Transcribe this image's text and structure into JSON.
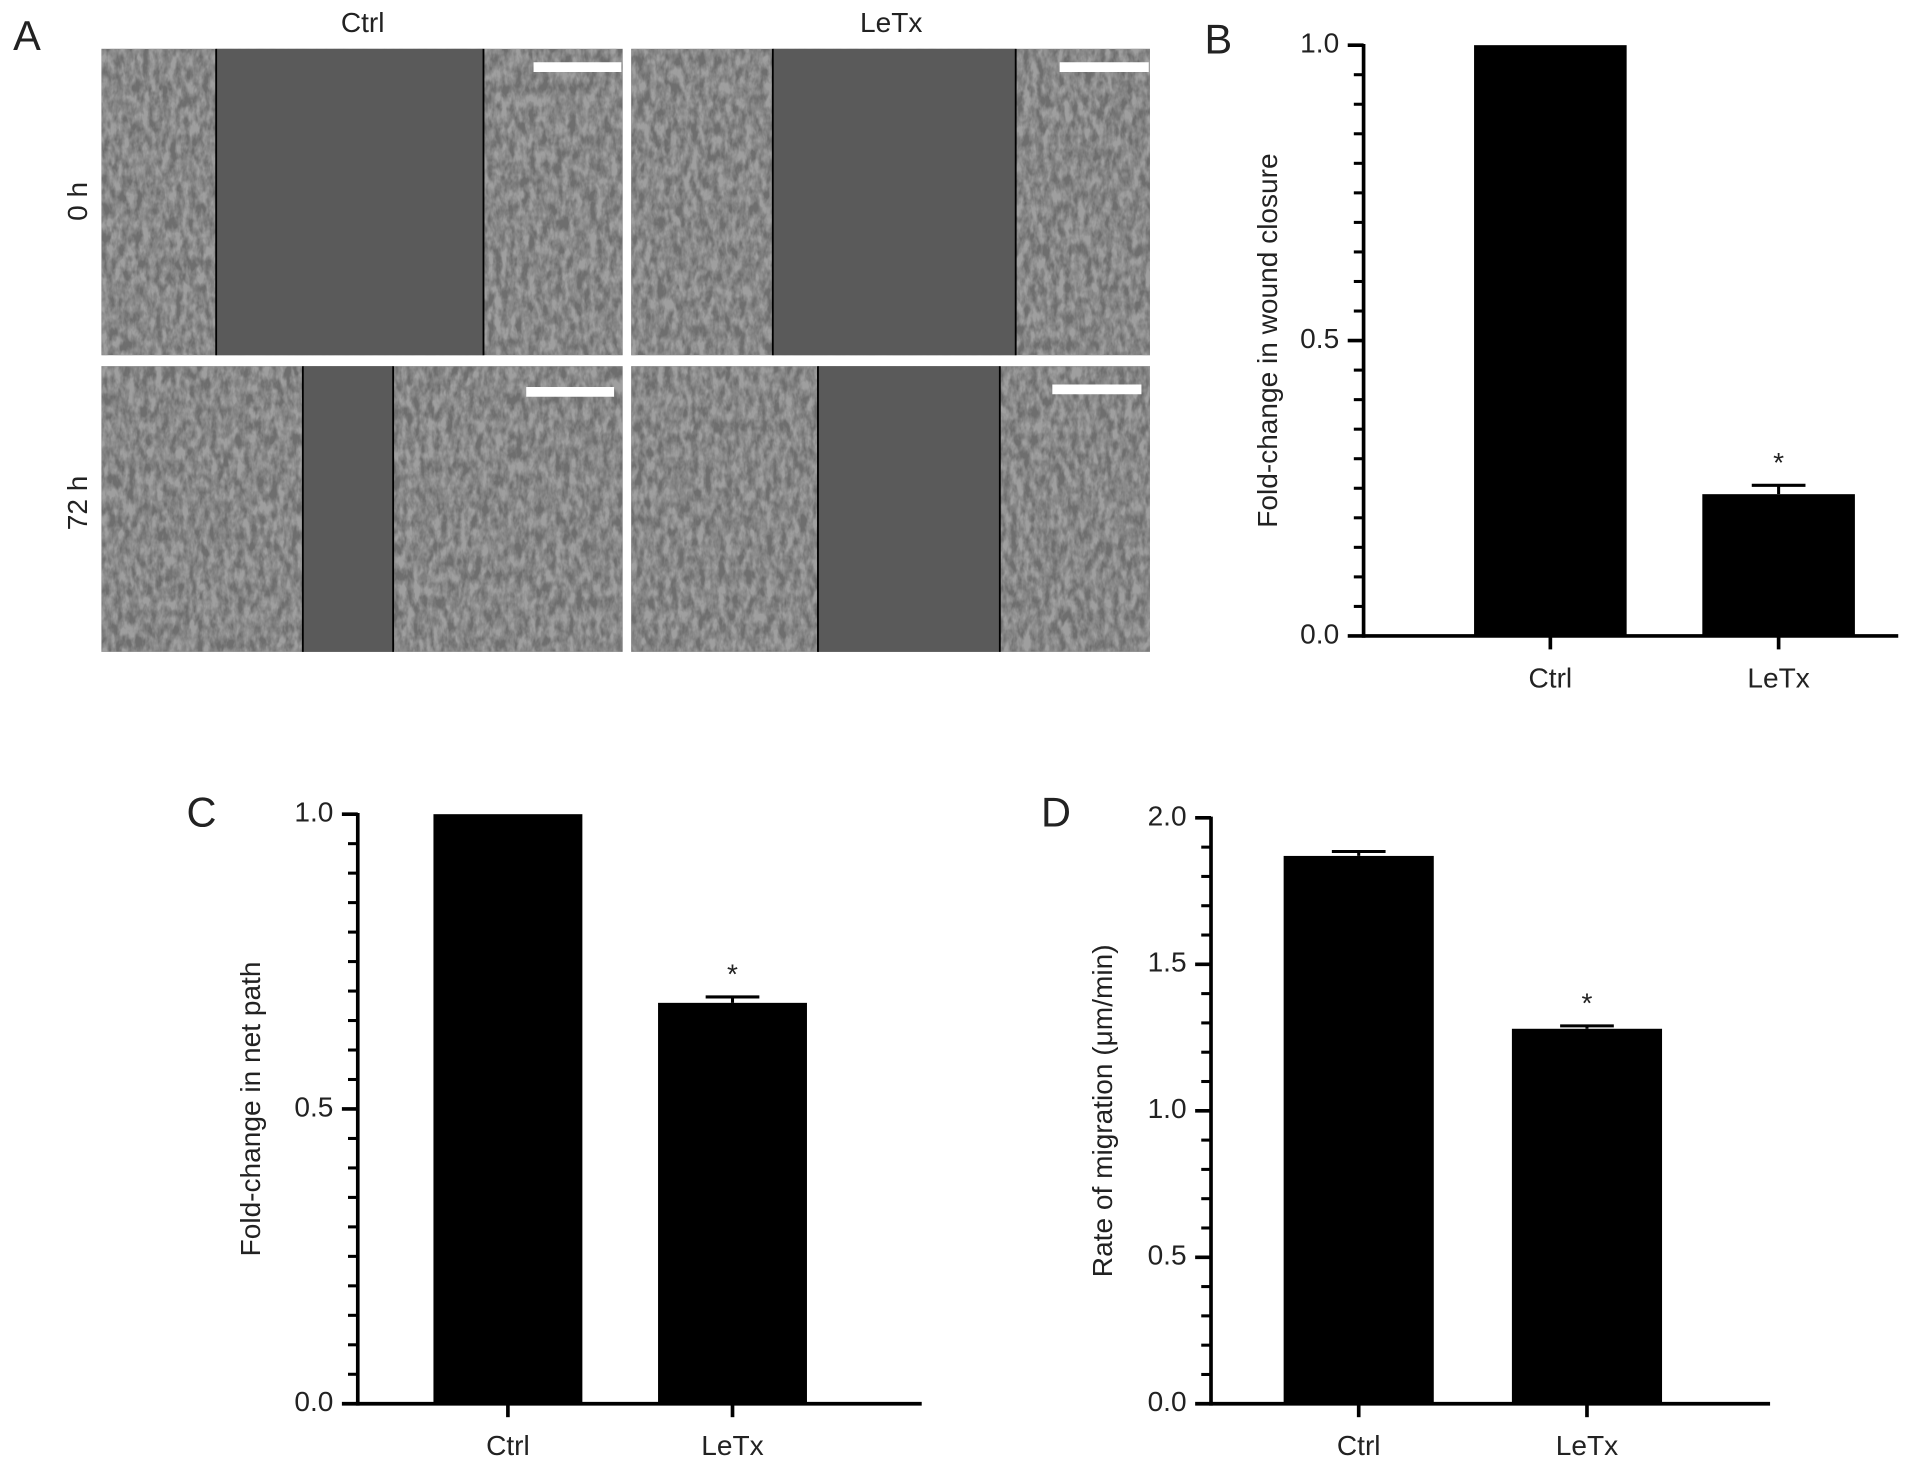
{
  "panel_a": {
    "label": "A",
    "columns": [
      "Ctrl",
      "LeTx"
    ],
    "rows": [
      "0 h",
      "72 h"
    ]
  },
  "chart_data": [
    {
      "type": "bar",
      "panel_label": "B",
      "ylabel": "Fold-change in wound closure",
      "categories": [
        "Ctrl",
        "LeTx"
      ],
      "values": [
        1.0,
        0.24
      ],
      "errors": [
        null,
        0.015
      ],
      "significance": [
        null,
        "*"
      ],
      "color": "#000000",
      "ylim": [
        0,
        1.0
      ],
      "yticks": [
        {
          "value": 0,
          "label": "0.0"
        },
        0.5,
        {
          "value": 1,
          "label": "1.0"
        }
      ],
      "minor_yticks": [
        0.05,
        0.1,
        0.15,
        0.2,
        0.25,
        0.3,
        0.35,
        0.4,
        0.45,
        0.55,
        0.6,
        0.65,
        0.7,
        0.75,
        0.8,
        0.85,
        0.9,
        0.95
      ]
    },
    {
      "type": "bar",
      "panel_label": "C",
      "ylabel": "Fold-change in net path",
      "categories": [
        "Ctrl",
        "LeTx"
      ],
      "values": [
        1.0,
        0.68
      ],
      "errors": [
        null,
        0.01
      ],
      "significance": [
        null,
        "*"
      ],
      "color": "#000000",
      "ylim": [
        0,
        1.0
      ],
      "yticks": [
        {
          "value": 0,
          "label": "0.0"
        },
        0.5,
        {
          "value": 1,
          "label": "1.0"
        }
      ],
      "minor_yticks": [
        0.05,
        0.1,
        0.15,
        0.2,
        0.25,
        0.3,
        0.35,
        0.4,
        0.45,
        0.55,
        0.6,
        0.65,
        0.7,
        0.75,
        0.8,
        0.85,
        0.9,
        0.95
      ]
    },
    {
      "type": "bar",
      "panel_label": "D",
      "ylabel": "Rate of migration (μm/min)",
      "categories": [
        "Ctrl",
        "LeTx"
      ],
      "values": [
        1.87,
        1.28
      ],
      "errors": [
        0.015,
        0.01
      ],
      "significance": [
        null,
        "*"
      ],
      "color": "#000000",
      "ylim": [
        0,
        2.0
      ],
      "yticks": [
        {
          "value": 0,
          "label": "0.0"
        },
        0.5,
        {
          "value": 1,
          "label": "1.0"
        },
        1.5,
        {
          "value": 2,
          "label": "2.0"
        }
      ],
      "minor_yticks": [
        0.1,
        0.2,
        0.3,
        0.4,
        0.6,
        0.7,
        0.8,
        0.9,
        1.1,
        1.2,
        1.3,
        1.4,
        1.6,
        1.7,
        1.8,
        1.9
      ]
    }
  ]
}
